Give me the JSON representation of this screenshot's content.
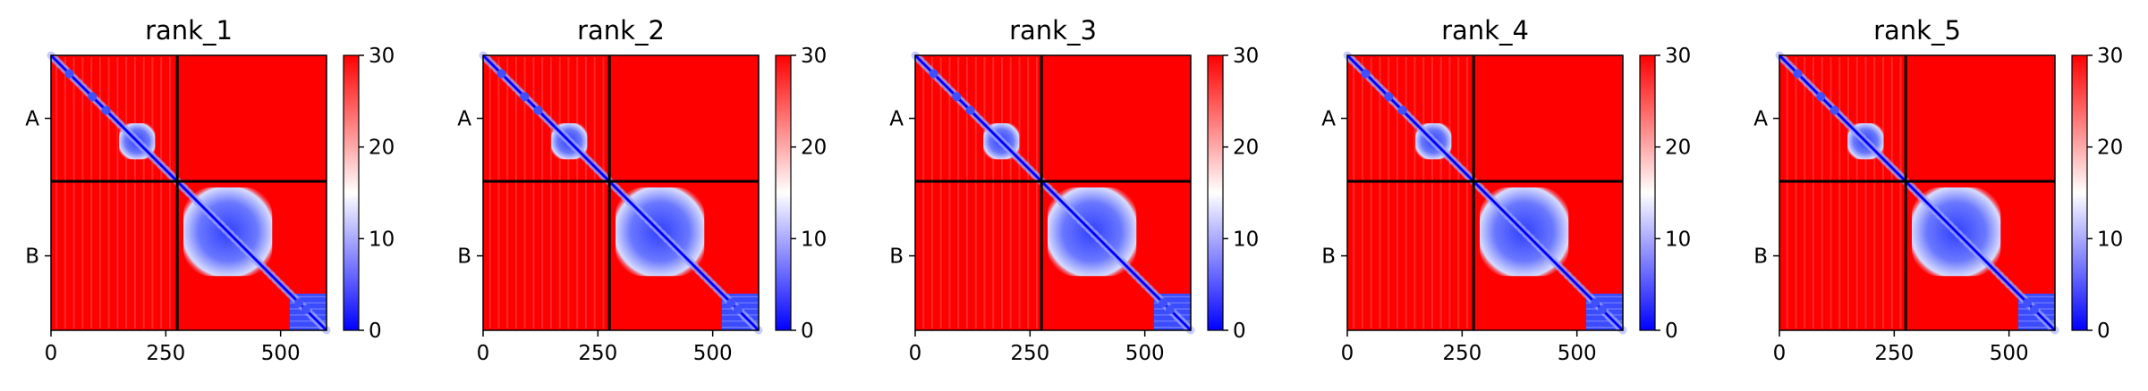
{
  "chart_data": {
    "type": "heatmap",
    "layout": "5 panels in a row, each with its own vertical colorbar to the right",
    "panels": [
      {
        "title": "rank_1"
      },
      {
        "title": "rank_2"
      },
      {
        "title": "rank_3"
      },
      {
        "title": "rank_4"
      },
      {
        "title": "rank_5"
      }
    ],
    "matrix_size": 600,
    "chain_boundary": 275,
    "chains": [
      {
        "label": "A",
        "start": 0,
        "end": 275
      },
      {
        "label": "B",
        "start": 275,
        "end": 600
      }
    ],
    "x_ticks": [
      0,
      250,
      500
    ],
    "x_tick_labels": [
      "0",
      "250",
      "500"
    ],
    "y_tick_labels": [
      "A",
      "B"
    ],
    "colorbar": {
      "min": 0,
      "max": 30,
      "ticks": [
        0,
        10,
        20,
        30
      ],
      "tick_labels": [
        "0",
        "10",
        "20",
        "30"
      ],
      "colormap": "bwr"
    },
    "colors": {
      "low": "#0000ff",
      "mid": "#ffffff",
      "high": "#ff0000",
      "divider": "#000000"
    },
    "description_of_values": "predicted aligned error; near-zero along the diagonal, two low-error blocks (around residues 160-215 and 300-470), low-error cluster near 520-600, elsewhere saturated at 30",
    "features": {
      "diagonal_band": true,
      "low_error_blocks": [
        {
          "from": 160,
          "to": 215,
          "level": 6
        },
        {
          "from": 300,
          "to": 470,
          "level": 6
        },
        {
          "from": 520,
          "to": 600,
          "level": 8
        }
      ]
    }
  }
}
